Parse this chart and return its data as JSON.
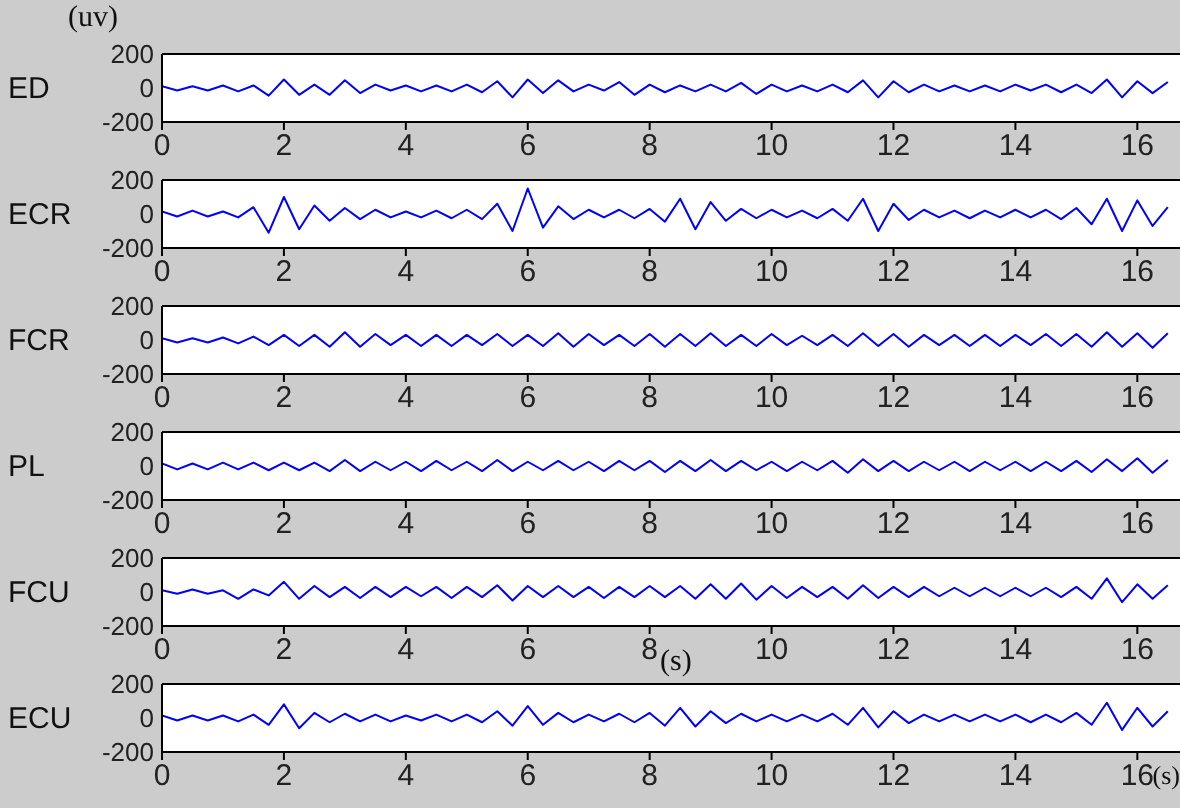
{
  "chart_data": [
    {
      "type": "line",
      "ylabel": "ED",
      "annotations": [
        "(uv)"
      ],
      "xlim": [
        0,
        16.7
      ],
      "xticks": [
        0,
        2,
        4,
        6,
        8,
        10,
        12,
        14,
        16
      ],
      "ylim": [
        -200,
        200
      ],
      "yticks": [
        -200,
        0,
        200
      ],
      "x": [
        0,
        0.25,
        0.5,
        0.75,
        1,
        1.25,
        1.5,
        1.75,
        2,
        2.25,
        2.5,
        2.75,
        3,
        3.25,
        3.5,
        3.75,
        4,
        4.25,
        4.5,
        4.75,
        5,
        5.25,
        5.5,
        5.75,
        6,
        6.25,
        6.5,
        6.75,
        7,
        7.25,
        7.5,
        7.75,
        8,
        8.25,
        8.5,
        8.75,
        9,
        9.25,
        9.5,
        9.75,
        10,
        10.25,
        10.5,
        10.75,
        11,
        11.25,
        11.5,
        11.75,
        12,
        12.25,
        12.5,
        12.75,
        13,
        13.25,
        13.5,
        13.75,
        14,
        14.25,
        14.5,
        14.75,
        15,
        15.25,
        15.5,
        15.75,
        16,
        16.25,
        16.5
      ],
      "series": [
        {
          "color": "#0000ff",
          "values": [
            10,
            -15,
            10,
            -15,
            15,
            -20,
            15,
            -45,
            50,
            -40,
            20,
            -40,
            45,
            -30,
            20,
            -15,
            15,
            -20,
            15,
            -20,
            20,
            -25,
            40,
            -55,
            50,
            -30,
            45,
            -20,
            20,
            -15,
            35,
            -40,
            20,
            -25,
            15,
            -20,
            20,
            -20,
            30,
            -35,
            20,
            -20,
            15,
            -20,
            20,
            -25,
            45,
            -55,
            40,
            -25,
            20,
            -20,
            15,
            -20,
            15,
            -20,
            20,
            -15,
            20,
            -25,
            20,
            -30,
            50,
            -55,
            40,
            -30,
            35
          ]
        }
      ]
    },
    {
      "type": "line",
      "ylabel": "ECR",
      "xlim": [
        0,
        16.7
      ],
      "xticks": [
        0,
        2,
        4,
        6,
        8,
        10,
        12,
        14,
        16
      ],
      "ylim": [
        -200,
        200
      ],
      "yticks": [
        -200,
        0,
        200
      ],
      "x": [
        0,
        0.25,
        0.5,
        0.75,
        1,
        1.25,
        1.5,
        1.75,
        2,
        2.25,
        2.5,
        2.75,
        3,
        3.25,
        3.5,
        3.75,
        4,
        4.25,
        4.5,
        4.75,
        5,
        5.25,
        5.5,
        5.75,
        6,
        6.25,
        6.5,
        6.75,
        7,
        7.25,
        7.5,
        7.75,
        8,
        8.25,
        8.5,
        8.75,
        9,
        9.25,
        9.5,
        9.75,
        10,
        10.25,
        10.5,
        10.75,
        11,
        11.25,
        11.5,
        11.75,
        12,
        12.25,
        12.5,
        12.75,
        13,
        13.25,
        13.5,
        13.75,
        14,
        14.25,
        14.5,
        14.75,
        15,
        15.25,
        15.5,
        15.75,
        16,
        16.25,
        16.5
      ],
      "series": [
        {
          "color": "#0000ff",
          "values": [
            15,
            -15,
            20,
            -15,
            15,
            -20,
            40,
            -110,
            100,
            -90,
            50,
            -40,
            35,
            -30,
            25,
            -20,
            15,
            -20,
            20,
            -25,
            25,
            -30,
            60,
            -100,
            150,
            -80,
            45,
            -30,
            25,
            -20,
            25,
            -25,
            30,
            -45,
            90,
            -90,
            70,
            -40,
            30,
            -25,
            25,
            -20,
            20,
            -25,
            30,
            -40,
            90,
            -100,
            60,
            -35,
            25,
            -20,
            20,
            -25,
            20,
            -20,
            25,
            -20,
            25,
            -30,
            35,
            -60,
            90,
            -100,
            80,
            -70,
            40
          ]
        }
      ]
    },
    {
      "type": "line",
      "ylabel": "FCR",
      "xlim": [
        0,
        16.7
      ],
      "xticks": [
        0,
        2,
        4,
        6,
        8,
        10,
        12,
        14,
        16
      ],
      "ylim": [
        -200,
        200
      ],
      "yticks": [
        -200,
        0,
        200
      ],
      "x": [
        0,
        0.25,
        0.5,
        0.75,
        1,
        1.25,
        1.5,
        1.75,
        2,
        2.25,
        2.5,
        2.75,
        3,
        3.25,
        3.5,
        3.75,
        4,
        4.25,
        4.5,
        4.75,
        5,
        5.25,
        5.5,
        5.75,
        6,
        6.25,
        6.5,
        6.75,
        7,
        7.25,
        7.5,
        7.75,
        8,
        8.25,
        8.5,
        8.75,
        9,
        9.25,
        9.5,
        9.75,
        10,
        10.25,
        10.5,
        10.75,
        11,
        11.25,
        11.5,
        11.75,
        12,
        12.25,
        12.5,
        12.75,
        13,
        13.25,
        13.5,
        13.75,
        14,
        14.25,
        14.5,
        14.75,
        15,
        15.25,
        15.5,
        15.75,
        16,
        16.25,
        16.5
      ],
      "series": [
        {
          "color": "#0000ff",
          "values": [
            10,
            -15,
            10,
            -15,
            15,
            -20,
            20,
            -30,
            30,
            -35,
            30,
            -40,
            45,
            -40,
            35,
            -30,
            30,
            -35,
            30,
            -35,
            30,
            -30,
            35,
            -35,
            30,
            -35,
            40,
            -40,
            35,
            -30,
            30,
            -35,
            35,
            -40,
            35,
            -35,
            40,
            -35,
            30,
            -35,
            35,
            -30,
            25,
            -30,
            30,
            -35,
            40,
            -35,
            35,
            -40,
            30,
            -30,
            30,
            -35,
            30,
            -35,
            30,
            -30,
            35,
            -35,
            35,
            -40,
            45,
            -40,
            40,
            -45,
            40
          ]
        }
      ]
    },
    {
      "type": "line",
      "ylabel": "PL",
      "xlim": [
        0,
        16.7
      ],
      "xticks": [
        0,
        2,
        4,
        6,
        8,
        10,
        12,
        14,
        16
      ],
      "ylim": [
        -200,
        200
      ],
      "yticks": [
        -200,
        0,
        200
      ],
      "x": [
        0,
        0.25,
        0.5,
        0.75,
        1,
        1.25,
        1.5,
        1.75,
        2,
        2.25,
        2.5,
        2.75,
        3,
        3.25,
        3.5,
        3.75,
        4,
        4.25,
        4.5,
        4.75,
        5,
        5.25,
        5.5,
        5.75,
        6,
        6.25,
        6.5,
        6.75,
        7,
        7.25,
        7.5,
        7.75,
        8,
        8.25,
        8.5,
        8.75,
        9,
        9.25,
        9.5,
        9.75,
        10,
        10.25,
        10.5,
        10.75,
        11,
        11.25,
        11.5,
        11.75,
        12,
        12.25,
        12.5,
        12.75,
        13,
        13.25,
        13.5,
        13.75,
        14,
        14.25,
        14.5,
        14.75,
        15,
        15.25,
        15.5,
        15.75,
        16,
        16.25,
        16.5
      ],
      "series": [
        {
          "color": "#0000ff",
          "values": [
            15,
            -20,
            15,
            -20,
            20,
            -20,
            20,
            -25,
            20,
            -25,
            20,
            -30,
            35,
            -30,
            25,
            -25,
            25,
            -30,
            30,
            -25,
            25,
            -30,
            35,
            -30,
            25,
            -25,
            30,
            -25,
            25,
            -30,
            30,
            -25,
            30,
            -35,
            30,
            -30,
            35,
            -30,
            30,
            -25,
            25,
            -30,
            25,
            -25,
            30,
            -40,
            40,
            -30,
            30,
            -30,
            25,
            -25,
            25,
            -30,
            25,
            -25,
            25,
            -30,
            25,
            -30,
            30,
            -35,
            40,
            -30,
            45,
            -40,
            35
          ]
        }
      ]
    },
    {
      "type": "line",
      "ylabel": "FCU",
      "annotations": [
        "(s)"
      ],
      "xlim": [
        0,
        16.7
      ],
      "xticks": [
        0,
        2,
        4,
        6,
        8,
        10,
        12,
        14,
        16
      ],
      "ylim": [
        -200,
        200
      ],
      "yticks": [
        -200,
        0,
        200
      ],
      "x": [
        0,
        0.25,
        0.5,
        0.75,
        1,
        1.25,
        1.5,
        1.75,
        2,
        2.25,
        2.5,
        2.75,
        3,
        3.25,
        3.5,
        3.75,
        4,
        4.25,
        4.5,
        4.75,
        5,
        5.25,
        5.5,
        5.75,
        6,
        6.25,
        6.5,
        6.75,
        7,
        7.25,
        7.5,
        7.75,
        8,
        8.25,
        8.5,
        8.75,
        9,
        9.25,
        9.5,
        9.75,
        10,
        10.25,
        10.5,
        10.75,
        11,
        11.25,
        11.5,
        11.75,
        12,
        12.25,
        12.5,
        12.75,
        13,
        13.25,
        13.5,
        13.75,
        14,
        14.25,
        14.5,
        14.75,
        15,
        15.25,
        15.5,
        15.75,
        16,
        16.25,
        16.5
      ],
      "series": [
        {
          "color": "#0000ff",
          "values": [
            10,
            -10,
            15,
            -10,
            10,
            -40,
            15,
            -20,
            60,
            -40,
            35,
            -30,
            30,
            -35,
            30,
            -30,
            30,
            -25,
            30,
            -35,
            30,
            -30,
            40,
            -50,
            35,
            -30,
            35,
            -30,
            30,
            -35,
            30,
            -30,
            35,
            -30,
            35,
            -40,
            45,
            -40,
            50,
            -45,
            35,
            -35,
            30,
            -30,
            30,
            -40,
            40,
            -35,
            30,
            -30,
            30,
            -25,
            25,
            -25,
            25,
            -25,
            25,
            -25,
            25,
            -30,
            30,
            -40,
            80,
            -60,
            45,
            -40,
            40
          ]
        }
      ]
    },
    {
      "type": "line",
      "ylabel": "ECU",
      "xlabel": "(s)",
      "xlim": [
        0,
        16.7
      ],
      "xticks": [
        0,
        2,
        4,
        6,
        8,
        10,
        12,
        14,
        16
      ],
      "ylim": [
        -200,
        200
      ],
      "yticks": [
        -200,
        0,
        200
      ],
      "x": [
        0,
        0.25,
        0.5,
        0.75,
        1,
        1.25,
        1.5,
        1.75,
        2,
        2.25,
        2.5,
        2.75,
        3,
        3.25,
        3.5,
        3.75,
        4,
        4.25,
        4.5,
        4.75,
        5,
        5.25,
        5.5,
        5.75,
        6,
        6.25,
        6.5,
        6.75,
        7,
        7.25,
        7.5,
        7.75,
        8,
        8.25,
        8.5,
        8.75,
        9,
        9.25,
        9.5,
        9.75,
        10,
        10.25,
        10.5,
        10.75,
        11,
        11.25,
        11.5,
        11.75,
        12,
        12.25,
        12.5,
        12.75,
        13,
        13.25,
        13.5,
        13.75,
        14,
        14.25,
        14.5,
        14.75,
        15,
        15.25,
        15.5,
        15.75,
        16,
        16.25,
        16.5
      ],
      "series": [
        {
          "color": "#0000ff",
          "values": [
            15,
            -15,
            15,
            -15,
            15,
            -20,
            20,
            -40,
            80,
            -60,
            30,
            -25,
            25,
            -20,
            20,
            -20,
            15,
            -15,
            20,
            -20,
            20,
            -25,
            40,
            -45,
            70,
            -40,
            30,
            -25,
            20,
            -20,
            25,
            -25,
            30,
            -45,
            60,
            -50,
            40,
            -30,
            25,
            -20,
            20,
            -20,
            20,
            -20,
            25,
            -40,
            60,
            -55,
            40,
            -30,
            20,
            -20,
            20,
            -20,
            20,
            -20,
            20,
            -25,
            20,
            -25,
            30,
            -40,
            90,
            -70,
            60,
            -50,
            40
          ]
        }
      ]
    }
  ]
}
